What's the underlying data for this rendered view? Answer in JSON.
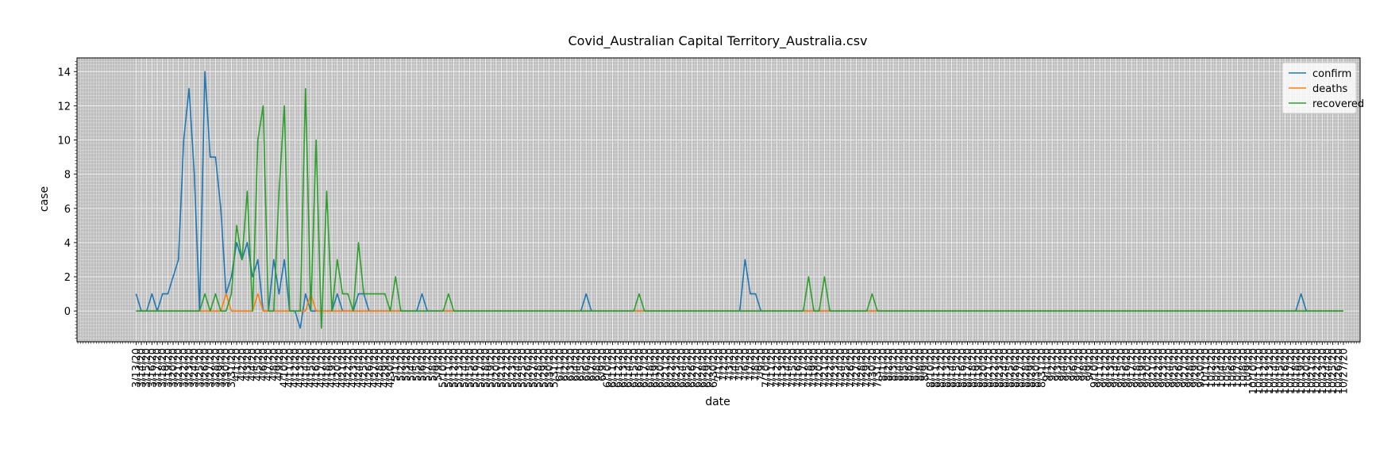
{
  "chart_data": {
    "type": "line",
    "title": "Covid_Australian Capital Territory_Australia.csv",
    "xlabel": "date",
    "ylabel": "case",
    "ylim": [
      -1.8,
      14.8
    ],
    "yticks": [
      0,
      2,
      4,
      6,
      8,
      10,
      12,
      14
    ],
    "grid": true,
    "legend": "top-right",
    "start_date": "2020-03-13",
    "end_date": "2020-10-27",
    "series": [
      {
        "name": "confirm",
        "color": "#1f77b4",
        "points": [
          [
            "3/13/20",
            1
          ],
          [
            "3/14/20",
            0
          ],
          [
            "3/15/20",
            0
          ],
          [
            "3/16/20",
            1
          ],
          [
            "3/17/20",
            0
          ],
          [
            "3/18/20",
            1
          ],
          [
            "3/19/20",
            1
          ],
          [
            "3/20/20",
            2
          ],
          [
            "3/21/20",
            3
          ],
          [
            "3/22/20",
            10
          ],
          [
            "3/23/20",
            13
          ],
          [
            "3/24/20",
            8
          ],
          [
            "3/25/20",
            0
          ],
          [
            "3/26/20",
            14
          ],
          [
            "3/27/20",
            9
          ],
          [
            "3/28/20",
            9
          ],
          [
            "3/29/20",
            6
          ],
          [
            "3/30/20",
            1
          ],
          [
            "3/31/20",
            2
          ],
          [
            "4/1/20",
            4
          ],
          [
            "4/2/20",
            3
          ],
          [
            "4/3/20",
            4
          ],
          [
            "4/4/20",
            2
          ],
          [
            "4/5/20",
            3
          ],
          [
            "4/6/20",
            0
          ],
          [
            "4/7/20",
            0
          ],
          [
            "4/8/20",
            3
          ],
          [
            "4/9/20",
            1
          ],
          [
            "4/10/20",
            3
          ],
          [
            "4/11/20",
            0
          ],
          [
            "4/12/20",
            0
          ],
          [
            "4/13/20",
            -1
          ],
          [
            "4/14/20",
            1
          ],
          [
            "4/15/20",
            0
          ],
          [
            "4/16/20",
            0
          ],
          [
            "4/17/20",
            0
          ],
          [
            "4/18/20",
            0
          ],
          [
            "4/19/20",
            0
          ],
          [
            "4/20/20",
            1
          ],
          [
            "4/21/20",
            0
          ],
          [
            "4/22/20",
            0
          ],
          [
            "4/23/20",
            0
          ],
          [
            "4/24/20",
            1
          ],
          [
            "4/25/20",
            1
          ],
          [
            "4/26/20",
            0
          ],
          [
            "5/5/20",
            0
          ],
          [
            "5/6/20",
            1
          ],
          [
            "5/7/20",
            0
          ],
          [
            "6/5/20",
            0
          ],
          [
            "6/6/20",
            1
          ],
          [
            "6/7/20",
            0
          ],
          [
            "7/5/20",
            0
          ],
          [
            "7/6/20",
            3
          ],
          [
            "7/7/20",
            1
          ],
          [
            "7/8/20",
            1
          ],
          [
            "7/9/20",
            0
          ],
          [
            "10/18/20",
            0
          ],
          [
            "10/19/20",
            1
          ],
          [
            "10/20/20",
            0
          ],
          [
            "10/27/20",
            0
          ]
        ]
      },
      {
        "name": "deaths",
        "color": "#ff7f0e",
        "points": [
          [
            "3/13/20",
            0
          ],
          [
            "3/29/20",
            0
          ],
          [
            "3/30/20",
            1
          ],
          [
            "3/31/20",
            0
          ],
          [
            "4/4/20",
            0
          ],
          [
            "4/5/20",
            1
          ],
          [
            "4/6/20",
            0
          ],
          [
            "4/14/20",
            0
          ],
          [
            "4/15/20",
            1
          ],
          [
            "4/16/20",
            0
          ],
          [
            "10/27/20",
            0
          ]
        ]
      },
      {
        "name": "recovered",
        "color": "#2ca02c",
        "points": [
          [
            "3/13/20",
            0
          ],
          [
            "3/25/20",
            0
          ],
          [
            "3/26/20",
            1
          ],
          [
            "3/27/20",
            0
          ],
          [
            "3/28/20",
            1
          ],
          [
            "3/29/20",
            0
          ],
          [
            "3/30/20",
            0
          ],
          [
            "3/31/20",
            1
          ],
          [
            "4/1/20",
            5
          ],
          [
            "4/2/20",
            3
          ],
          [
            "4/3/20",
            7
          ],
          [
            "4/4/20",
            0
          ],
          [
            "4/5/20",
            10
          ],
          [
            "4/6/20",
            12
          ],
          [
            "4/7/20",
            0
          ],
          [
            "4/8/20",
            0
          ],
          [
            "4/9/20",
            7
          ],
          [
            "4/10/20",
            12
          ],
          [
            "4/11/20",
            0
          ],
          [
            "4/12/20",
            0
          ],
          [
            "4/13/20",
            0
          ],
          [
            "4/14/20",
            13
          ],
          [
            "4/15/20",
            0
          ],
          [
            "4/16/20",
            10
          ],
          [
            "4/17/20",
            -1
          ],
          [
            "4/18/20",
            7
          ],
          [
            "4/19/20",
            0
          ],
          [
            "4/20/20",
            3
          ],
          [
            "4/21/20",
            1
          ],
          [
            "4/22/20",
            1
          ],
          [
            "4/23/20",
            0
          ],
          [
            "4/24/20",
            4
          ],
          [
            "4/25/20",
            1
          ],
          [
            "4/26/20",
            1
          ],
          [
            "4/27/20",
            1
          ],
          [
            "4/28/20",
            1
          ],
          [
            "4/29/20",
            1
          ],
          [
            "4/30/20",
            0
          ],
          [
            "5/1/20",
            2
          ],
          [
            "5/2/20",
            0
          ],
          [
            "5/10/20",
            0
          ],
          [
            "5/11/20",
            1
          ],
          [
            "5/12/20",
            0
          ],
          [
            "6/15/20",
            0
          ],
          [
            "6/16/20",
            1
          ],
          [
            "6/17/20",
            0
          ],
          [
            "7/17/20",
            0
          ],
          [
            "7/18/20",
            2
          ],
          [
            "7/19/20",
            0
          ],
          [
            "7/20/20",
            0
          ],
          [
            "7/21/20",
            2
          ],
          [
            "7/22/20",
            0
          ],
          [
            "7/29/20",
            0
          ],
          [
            "7/30/20",
            1
          ],
          [
            "7/31/20",
            0
          ],
          [
            "10/27/20",
            0
          ]
        ]
      }
    ]
  }
}
